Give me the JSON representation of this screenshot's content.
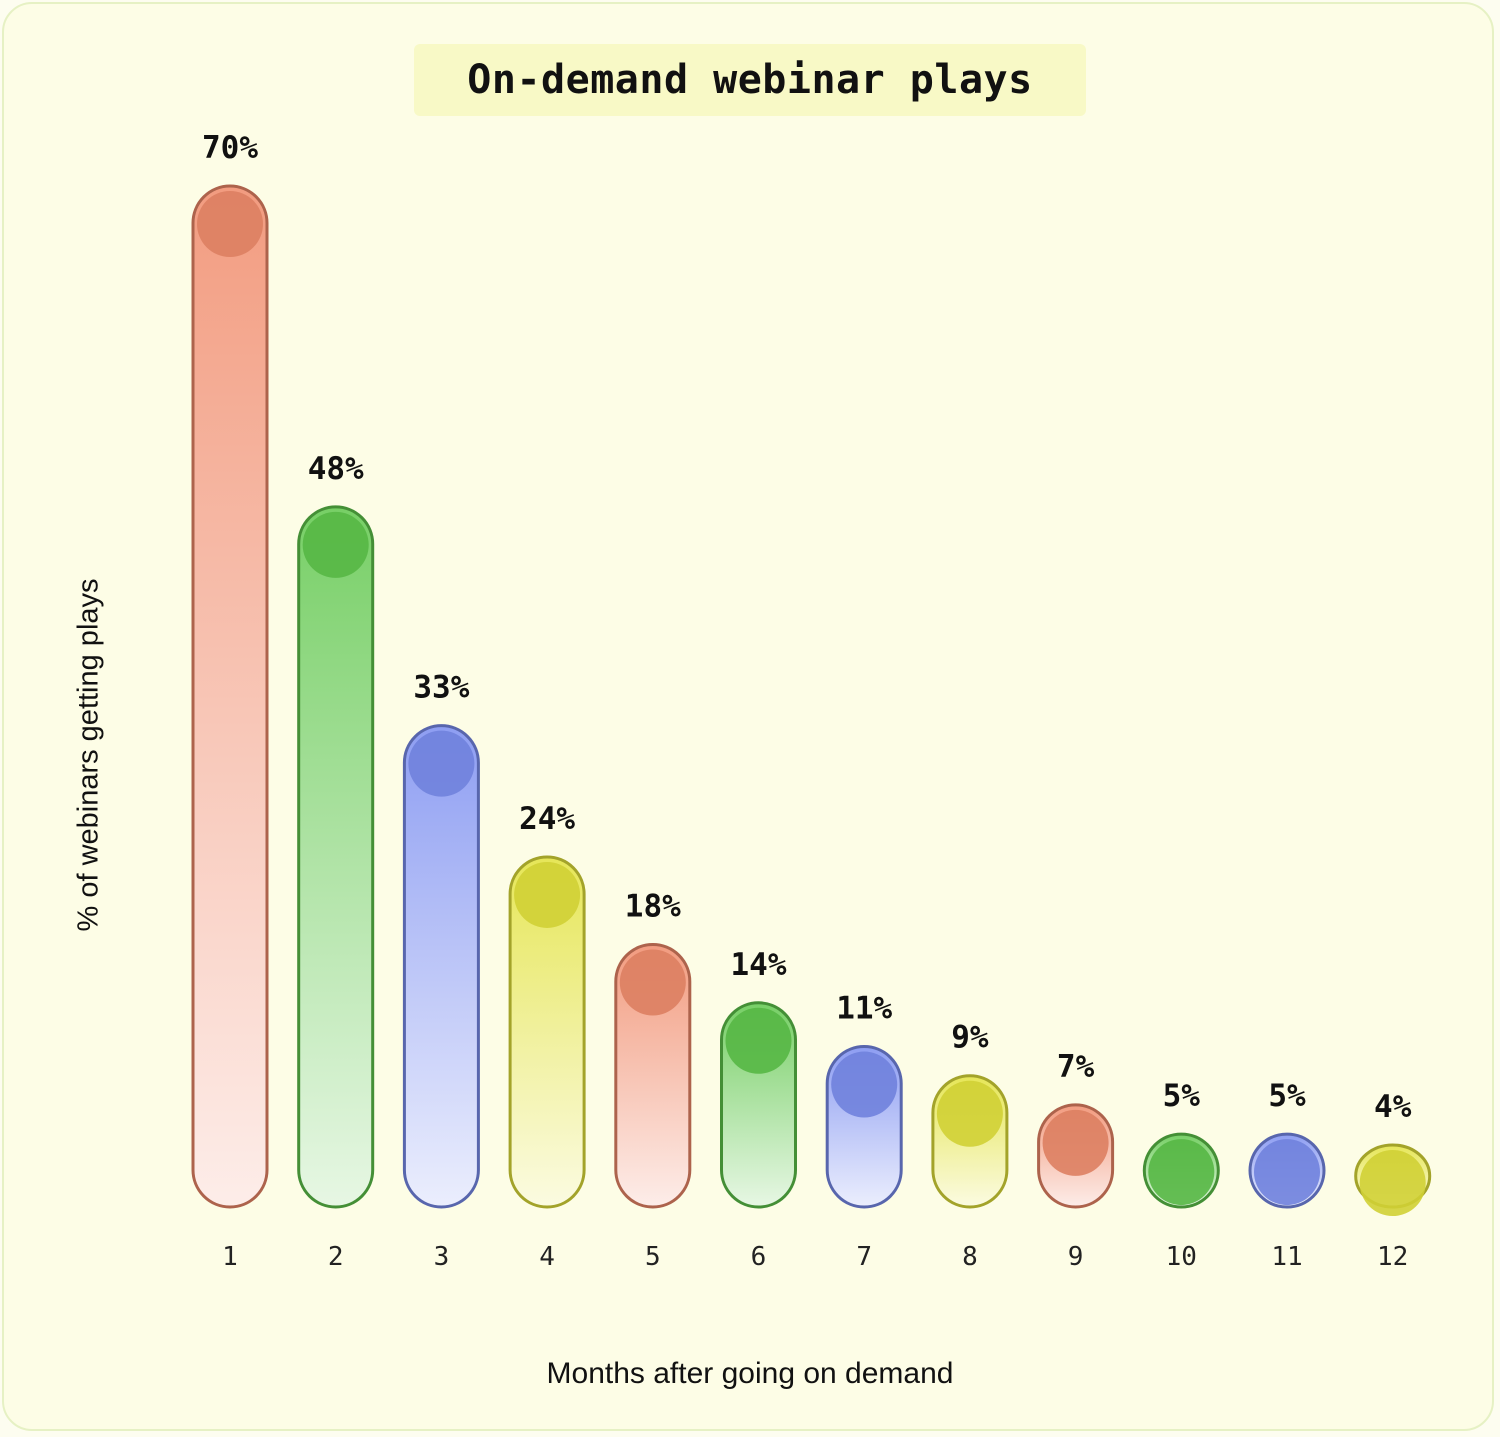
{
  "chart_data": {
    "type": "bar",
    "title": "On-demand webinar plays",
    "xlabel": "Months after going on demand",
    "ylabel": "% of webinars getting plays",
    "categories": [
      "1",
      "2",
      "3",
      "4",
      "5",
      "6",
      "7",
      "8",
      "9",
      "10",
      "11",
      "12"
    ],
    "values": [
      70,
      48,
      33,
      24,
      18,
      14,
      11,
      9,
      7,
      5,
      5,
      4
    ],
    "value_labels": [
      "70%",
      "48%",
      "33%",
      "24%",
      "18%",
      "14%",
      "11%",
      "9%",
      "7%",
      "5%",
      "5%",
      "4%"
    ],
    "ylim": [
      0,
      70
    ],
    "grid": false,
    "bar_colors": [
      "#f08a6a",
      "#5fc74b",
      "#7a8df0",
      "#e2e23a",
      "#f08a6a",
      "#5fc74b",
      "#7a8df0",
      "#e2e23a",
      "#f08a6a",
      "#5fc74b",
      "#7a8df0",
      "#e2e23a"
    ]
  }
}
